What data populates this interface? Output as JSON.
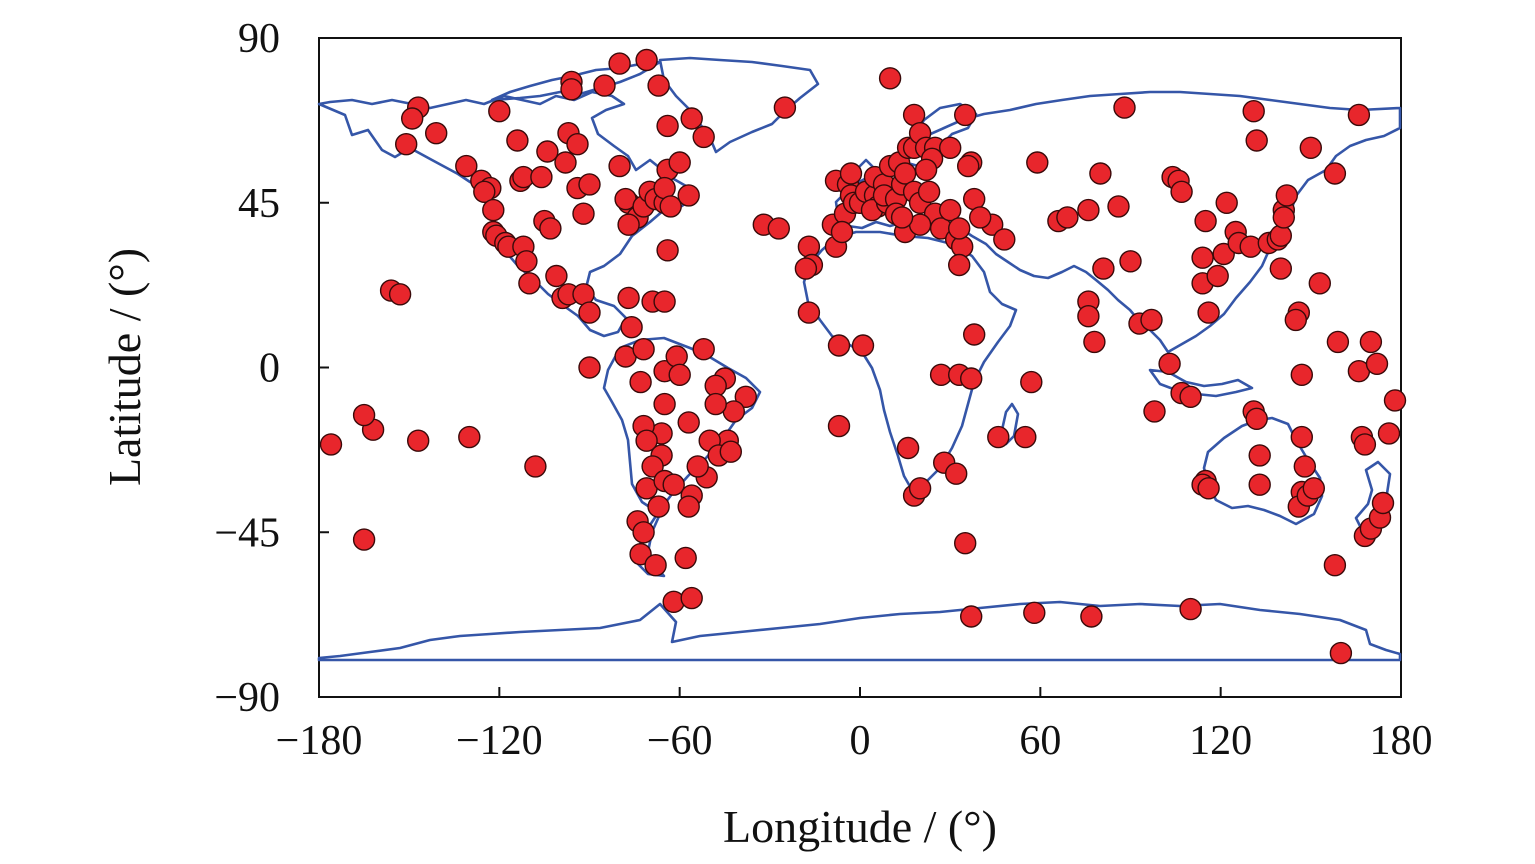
{
  "chart_data": {
    "type": "scatter",
    "title": "",
    "xlabel": "Longitude / (°)",
    "ylabel": "Latitude / (°)",
    "xlim": [
      -180,
      180
    ],
    "ylim": [
      -90,
      90
    ],
    "xticks": [
      "−180",
      "−120",
      "−60",
      "0",
      "60",
      "120",
      "180"
    ],
    "yticks": [
      "90",
      "45",
      "0",
      "−45",
      "−90"
    ],
    "grid": false,
    "background_map": "world coastlines",
    "colors": {
      "marker_fill": "#e8262c",
      "marker_edge": "#3a0a0a",
      "coastline": "#3556a8"
    },
    "series": [
      {
        "points": [
          [
            -165,
            -47
          ],
          [
            -176,
            -21
          ],
          [
            -162,
            -17
          ],
          [
            -165,
            -13
          ],
          [
            -147,
            -20
          ],
          [
            -130,
            -19
          ],
          [
            -108,
            -27
          ],
          [
            -156,
            21
          ],
          [
            -153,
            20
          ],
          [
            -141,
            64
          ],
          [
            -151,
            61
          ],
          [
            -147,
            71
          ],
          [
            -149,
            68
          ],
          [
            -131,
            55
          ],
          [
            -126,
            51
          ],
          [
            -123,
            49
          ],
          [
            -125,
            48
          ],
          [
            -120,
            70
          ],
          [
            -114,
            62
          ],
          [
            -113,
            51
          ],
          [
            -122,
            43
          ],
          [
            -122,
            37
          ],
          [
            -121,
            36
          ],
          [
            -118,
            34
          ],
          [
            -117,
            33
          ],
          [
            -112,
            33
          ],
          [
            -111,
            29
          ],
          [
            -110,
            23
          ],
          [
            -112,
            52
          ],
          [
            -106,
            52
          ],
          [
            -105,
            40
          ],
          [
            -103,
            38
          ],
          [
            -98,
            56
          ],
          [
            -104,
            59
          ],
          [
            -97,
            64
          ],
          [
            -96,
            78
          ],
          [
            -96,
            76
          ],
          [
            -94,
            49
          ],
          [
            -90,
            50
          ],
          [
            -94,
            61
          ],
          [
            -101,
            25
          ],
          [
            -99,
            19
          ],
          [
            -97,
            20
          ],
          [
            -92,
            20
          ],
          [
            -90,
            15
          ],
          [
            -90,
            0
          ],
          [
            -92,
            42
          ],
          [
            -80,
            83
          ],
          [
            -71,
            84
          ],
          [
            -67,
            77
          ],
          [
            -64,
            66
          ],
          [
            -56,
            68
          ],
          [
            -52,
            63
          ],
          [
            -85,
            77
          ],
          [
            -80,
            55
          ],
          [
            -77,
            45
          ],
          [
            -78,
            46
          ],
          [
            -74,
            41
          ],
          [
            -72,
            44
          ],
          [
            -77,
            39
          ],
          [
            -70,
            48
          ],
          [
            -68,
            46
          ],
          [
            -64,
            54
          ],
          [
            -60,
            56
          ],
          [
            -65,
            45
          ],
          [
            -65,
            49
          ],
          [
            -63,
            44
          ],
          [
            -64,
            32
          ],
          [
            -57,
            47
          ],
          [
            -77,
            19
          ],
          [
            -69,
            18
          ],
          [
            -65,
            18
          ],
          [
            -76,
            11
          ],
          [
            -78,
            3
          ],
          [
            -72,
            5
          ],
          [
            -65,
            -1
          ],
          [
            -61,
            3
          ],
          [
            -60,
            -2
          ],
          [
            -52,
            5
          ],
          [
            -73,
            -4
          ],
          [
            -65,
            -10
          ],
          [
            -45,
            -3
          ],
          [
            -48,
            -5
          ],
          [
            -38,
            -8
          ],
          [
            -42,
            -12
          ],
          [
            -48,
            -10
          ],
          [
            -44,
            -20
          ],
          [
            -57,
            -15
          ],
          [
            -50,
            -20
          ],
          [
            -47,
            -24
          ],
          [
            -51,
            -30
          ],
          [
            -54,
            -27
          ],
          [
            -43,
            -23
          ],
          [
            -66,
            -18
          ],
          [
            -72,
            -16
          ],
          [
            -71,
            -20
          ],
          [
            -66,
            -24
          ],
          [
            -69,
            -27
          ],
          [
            -71,
            -33
          ],
          [
            -65,
            -31
          ],
          [
            -62,
            -32
          ],
          [
            -67,
            -38
          ],
          [
            -56,
            -35
          ],
          [
            -57,
            -38
          ],
          [
            -74,
            -42
          ],
          [
            -72,
            -45
          ],
          [
            -73,
            -51
          ],
          [
            -68,
            -54
          ],
          [
            -58,
            -52
          ],
          [
            -62,
            -64
          ],
          [
            -56,
            -63
          ],
          [
            -25,
            71
          ],
          [
            -32,
            39
          ],
          [
            -27,
            38
          ],
          [
            -17,
            33
          ],
          [
            -16,
            28
          ],
          [
            -18,
            27
          ],
          [
            -17,
            15
          ],
          [
            -7,
            6
          ],
          [
            -8,
            51
          ],
          [
            -9,
            39
          ],
          [
            -8,
            33
          ],
          [
            -5,
            42
          ],
          [
            -6,
            37
          ],
          [
            -4,
            50
          ],
          [
            -3,
            53
          ],
          [
            -3,
            47
          ],
          [
            -2,
            45
          ],
          [
            0,
            45
          ],
          [
            2,
            48
          ],
          [
            5,
            47
          ],
          [
            5,
            52
          ],
          [
            8,
            50
          ],
          [
            6,
            44
          ],
          [
            4,
            43
          ],
          [
            9,
            45
          ],
          [
            10,
            55
          ],
          [
            8,
            47
          ],
          [
            12,
            46
          ],
          [
            14,
            50
          ],
          [
            13,
            56
          ],
          [
            15,
            53
          ],
          [
            16,
            60
          ],
          [
            18,
            60
          ],
          [
            18,
            48
          ],
          [
            20,
            45
          ],
          [
            12,
            42
          ],
          [
            15,
            37
          ],
          [
            10,
            79
          ],
          [
            18,
            69
          ],
          [
            20,
            64
          ],
          [
            22,
            60
          ],
          [
            25,
            60
          ],
          [
            24,
            57
          ],
          [
            22,
            54
          ],
          [
            23,
            48
          ],
          [
            25,
            42
          ],
          [
            27,
            38
          ],
          [
            20,
            39
          ],
          [
            14,
            41
          ],
          [
            35,
            69
          ],
          [
            30,
            60
          ],
          [
            37,
            56
          ],
          [
            36,
            55
          ],
          [
            32,
            35
          ],
          [
            34,
            33
          ],
          [
            33,
            28
          ],
          [
            38,
            46
          ],
          [
            44,
            39
          ],
          [
            40,
            41
          ],
          [
            30,
            43
          ],
          [
            33,
            38
          ],
          [
            38,
            9
          ],
          [
            27,
            -2
          ],
          [
            33,
            -2
          ],
          [
            37,
            -3
          ],
          [
            46,
            -19
          ],
          [
            55,
            -19
          ],
          [
            57,
            -4
          ],
          [
            28,
            -26
          ],
          [
            32,
            -29
          ],
          [
            16,
            -22
          ],
          [
            18,
            -35
          ],
          [
            20,
            -33
          ],
          [
            35,
            -48
          ],
          [
            -7,
            -16
          ],
          [
            1,
            6
          ],
          [
            37,
            -68
          ],
          [
            58,
            -67
          ],
          [
            77,
            -68
          ],
          [
            110,
            -66
          ],
          [
            160,
            -78
          ],
          [
            48,
            35
          ],
          [
            59,
            56
          ],
          [
            66,
            40
          ],
          [
            69,
            41
          ],
          [
            76,
            43
          ],
          [
            80,
            53
          ],
          [
            81,
            27
          ],
          [
            76,
            18
          ],
          [
            88,
            71
          ],
          [
            86,
            44
          ],
          [
            90,
            29
          ],
          [
            93,
            12
          ],
          [
            76,
            14
          ],
          [
            78,
            7
          ],
          [
            97,
            13
          ],
          [
            103,
            1
          ],
          [
            98,
            -12
          ],
          [
            104,
            52
          ],
          [
            106,
            51
          ],
          [
            107,
            48
          ],
          [
            107,
            -7
          ],
          [
            110,
            -8
          ],
          [
            114,
            30
          ],
          [
            114,
            23
          ],
          [
            115,
            40
          ],
          [
            115,
            -31
          ],
          [
            114,
            -32
          ],
          [
            116,
            -33
          ],
          [
            116,
            15
          ],
          [
            119,
            25
          ],
          [
            121,
            31
          ],
          [
            122,
            45
          ],
          [
            125,
            37
          ],
          [
            126,
            34
          ],
          [
            130,
            33
          ],
          [
            131,
            70
          ],
          [
            132,
            62
          ],
          [
            131,
            -12
          ],
          [
            132,
            -14
          ],
          [
            133,
            -24
          ],
          [
            133,
            -32
          ],
          [
            136,
            34
          ],
          [
            139,
            35
          ],
          [
            140,
            36
          ],
          [
            140,
            27
          ],
          [
            141,
            43
          ],
          [
            141,
            41
          ],
          [
            142,
            47
          ],
          [
            146,
            15
          ],
          [
            145,
            13
          ],
          [
            147,
            -2
          ],
          [
            147,
            -19
          ],
          [
            148,
            -27
          ],
          [
            147,
            -34
          ],
          [
            146,
            -38
          ],
          [
            149,
            -35
          ],
          [
            151,
            -33
          ],
          [
            153,
            23
          ],
          [
            150,
            60
          ],
          [
            158,
            53
          ],
          [
            158,
            -54
          ],
          [
            159,
            7
          ],
          [
            166,
            69
          ],
          [
            166,
            -1
          ],
          [
            167,
            -19
          ],
          [
            168,
            -21
          ],
          [
            168,
            -46
          ],
          [
            170,
            7
          ],
          [
            170,
            -44
          ],
          [
            173,
            -41
          ],
          [
            172,
            1
          ],
          [
            174,
            -37
          ],
          [
            176,
            -18
          ],
          [
            178,
            -9
          ]
        ]
      }
    ]
  }
}
